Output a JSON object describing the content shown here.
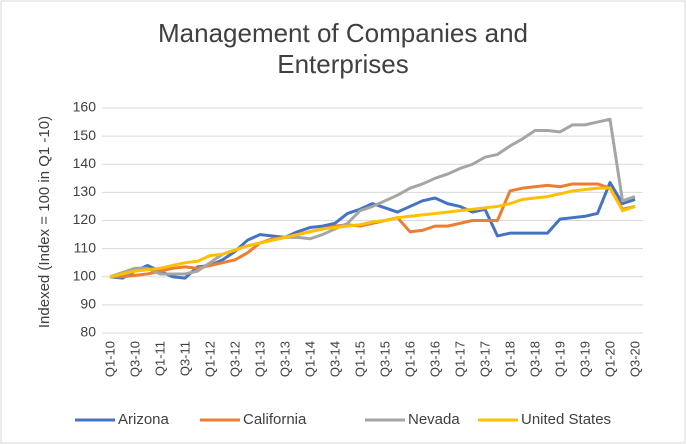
{
  "chart_data": {
    "type": "line",
    "title": "Management of Companies and Enterprises",
    "y_label": "Indexed (Index = 100 in Q1 -10)",
    "categories": [
      "Q1-10",
      null,
      "Q3-10",
      null,
      "Q1-11",
      null,
      "Q3-11",
      null,
      "Q1-12",
      null,
      "Q3-12",
      null,
      "Q1-13",
      null,
      "Q3-13",
      null,
      "Q1-14",
      null,
      "Q3-14",
      null,
      "Q1-15",
      null,
      "Q3-15",
      null,
      "Q1-16",
      null,
      "Q3-16",
      null,
      "Q1-17",
      null,
      "Q3-17",
      null,
      "Q1-18",
      null,
      "Q3-18",
      null,
      "Q1-19",
      null,
      "Q3-19",
      null,
      "Q1-20",
      null,
      "Q3-20"
    ],
    "series": [
      {
        "name": "Arizona",
        "color": "#4472c4",
        "values": [
          100,
          99.5,
          102,
          104,
          102,
          100,
          99.5,
          103.5,
          104,
          106,
          109,
          113,
          115,
          114.5,
          114,
          116,
          117.5,
          118,
          119,
          122.5,
          124,
          126,
          124.5,
          123,
          125,
          127,
          128,
          126,
          125,
          123,
          124,
          114.5,
          115.5,
          115.5,
          115.5,
          115.5,
          120.5,
          121,
          121.5,
          122.5,
          133.5,
          126,
          127.5
        ]
      },
      {
        "name": "California",
        "color": "#ed7d31",
        "values": [
          100,
          100,
          100.5,
          101,
          102,
          103,
          103.5,
          103,
          104,
          105,
          106,
          108.5,
          112,
          113.5,
          114,
          115,
          116,
          117,
          118,
          118.5,
          118,
          119,
          120,
          121,
          116,
          116.5,
          118,
          118,
          119,
          120,
          120,
          120,
          130.5,
          131.5,
          132,
          132.5,
          132,
          133,
          133,
          133,
          131.5,
          124,
          125
        ]
      },
      {
        "name": "Nevada",
        "color": "#a5a5a5",
        "values": [
          100,
          101.5,
          103,
          103,
          101,
          101,
          101,
          102,
          105,
          108,
          109.5,
          111,
          112,
          113,
          114,
          114,
          113.5,
          115,
          117,
          119,
          123.5,
          125,
          127,
          129,
          131.5,
          133,
          135,
          136.5,
          138.5,
          140,
          142.5,
          143.5,
          146.5,
          149,
          152,
          152,
          151.5,
          154,
          154,
          155,
          156,
          127,
          128.5
        ]
      },
      {
        "name": "United States",
        "color": "#ffc000",
        "values": [
          100,
          101,
          102,
          102.5,
          103,
          104,
          105,
          105.5,
          107.5,
          108,
          109.5,
          111,
          112,
          113,
          114,
          115,
          116,
          117,
          117.5,
          118,
          118.5,
          119.5,
          120,
          121,
          121.5,
          122,
          122.5,
          123,
          123.5,
          124,
          124.5,
          125,
          126,
          127.5,
          128,
          128.5,
          129.5,
          130.5,
          131,
          131.5,
          131.5,
          123.5,
          125
        ]
      }
    ],
    "ylim": [
      80,
      160
    ],
    "yticks": [
      80,
      90,
      100,
      110,
      120,
      130,
      140,
      150,
      160
    ],
    "grid": true,
    "legend": "bottom"
  }
}
